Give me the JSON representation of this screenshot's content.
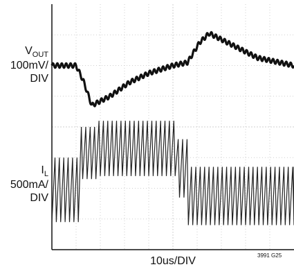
{
  "chart_data": {
    "type": "line",
    "title": "",
    "time_per_div": "10us/DIV",
    "figure_id": "3991 G25",
    "grid": true,
    "x_divisions": 10,
    "y_divisions": 8,
    "channels": [
      {
        "symbol": "V",
        "subscript": "OUT",
        "scale": "100mV/",
        "unit_suffix": "DIV",
        "description": "output voltage, AC-coupled, slight ripple",
        "center_div": 2.0,
        "points_div": [
          [
            0,
            2.0
          ],
          [
            1.0,
            2.0
          ],
          [
            1.3,
            1.5
          ],
          [
            1.65,
            0.7
          ],
          [
            2.4,
            1.0
          ],
          [
            3.2,
            1.45
          ],
          [
            4.0,
            1.75
          ],
          [
            4.8,
            1.95
          ],
          [
            5.0,
            2.0
          ],
          [
            5.6,
            2.1
          ],
          [
            6.1,
            2.75
          ],
          [
            6.5,
            3.05
          ],
          [
            7.5,
            2.65
          ],
          [
            8.5,
            2.25
          ],
          [
            10.0,
            2.0
          ]
        ],
        "ripple_div": 0.12
      },
      {
        "symbol": "I",
        "subscript": "L",
        "scale": "500mA/",
        "unit_suffix": "DIV",
        "description": "inductor current sawtooth; envelope steps up during load step",
        "segments": [
          {
            "t_start": 0.0,
            "t_end": 1.2,
            "low_div": -1.1,
            "high_div": 1.0
          },
          {
            "t_start": 1.2,
            "t_end": 1.9,
            "low_div": 0.3,
            "high_div": 2.0
          },
          {
            "t_start": 1.9,
            "t_end": 5.2,
            "low_div": 0.4,
            "high_div": 2.2
          },
          {
            "t_start": 5.2,
            "t_end": 5.6,
            "low_div": -0.3,
            "high_div": 1.6
          },
          {
            "t_start": 5.6,
            "t_end": 10.0,
            "low_div": -1.2,
            "high_div": 0.7
          }
        ],
        "center_div": -2.0,
        "switching_cycles_per_div": 5.5
      }
    ]
  }
}
